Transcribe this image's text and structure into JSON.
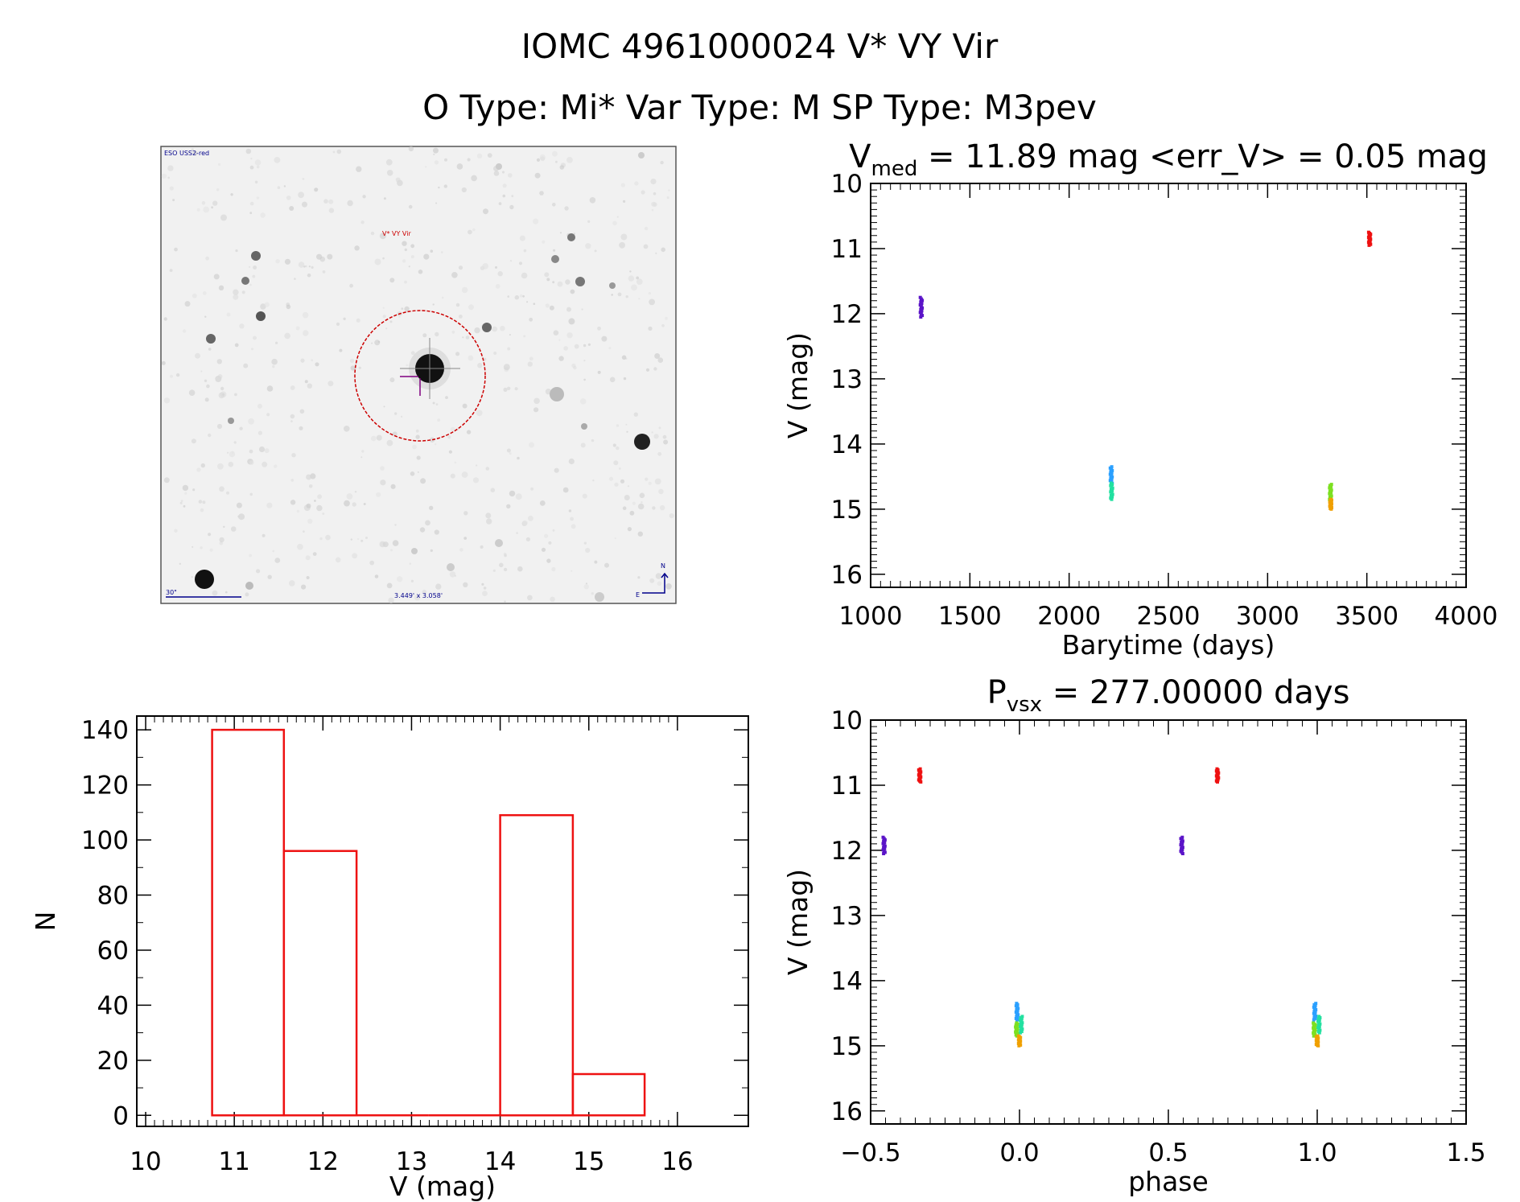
{
  "header": {
    "title_line1": "IOMC 4961000024    V* VY Vir",
    "title_line2": "O Type: Mi*  Var Type: M  SP Type: M3pev"
  },
  "finder_chart": {
    "survey_label": "ESO USS2-red",
    "object_label": "V* VY Vir",
    "scale_label": "30\"",
    "fov_label": "3.449' x 3.058'",
    "north_label": "N",
    "east_label": "E",
    "label_color": "#00008b",
    "object_color": "#cc0000",
    "marker_color": "#800080"
  },
  "chart_data": [
    {
      "id": "light_curve",
      "type": "scatter",
      "title_main": "V",
      "title_sub": "med",
      "title_rest": " = 11.89 mag <err_V> = 0.05 mag",
      "xlabel": "Barytime (days)",
      "ylabel": "V (mag)",
      "xlim": [
        1000,
        4000
      ],
      "ylim": [
        16.2,
        10
      ],
      "y_inverted": true,
      "xticks": [
        1000,
        1500,
        2000,
        2500,
        3000,
        3500,
        4000
      ],
      "yticks": [
        10,
        11,
        12,
        13,
        14,
        15,
        16
      ],
      "groups": [
        {
          "x": 1255,
          "y_min": 11.75,
          "y_max": 12.05,
          "color": "#5b14c8"
        },
        {
          "x": 2212,
          "y_min": 14.35,
          "y_max": 14.6,
          "color": "#2aa0ff"
        },
        {
          "x": 2214,
          "y_min": 14.6,
          "y_max": 14.85,
          "color": "#22e0a0"
        },
        {
          "x": 3317,
          "y_min": 14.62,
          "y_max": 14.85,
          "color": "#7ce020"
        },
        {
          "x": 3318,
          "y_min": 14.85,
          "y_max": 15.0,
          "color": "#f0a000"
        },
        {
          "x": 3514,
          "y_min": 10.75,
          "y_max": 10.95,
          "color": "#ee1111"
        }
      ]
    },
    {
      "id": "phase_curve",
      "type": "scatter",
      "title_main": "P",
      "title_sub": "vsx",
      "title_rest": " = 277.00000 days",
      "xlabel": "phase",
      "ylabel": "V (mag)",
      "xlim": [
        -0.5,
        1.5
      ],
      "ylim": [
        16.2,
        10
      ],
      "y_inverted": true,
      "xticks": [
        -0.5,
        0.0,
        0.5,
        1.0,
        1.5
      ],
      "xtick_labels": [
        "−0.5",
        "0.0",
        "0.5",
        "1.0",
        "1.5"
      ],
      "yticks": [
        10,
        11,
        12,
        13,
        14,
        15,
        16
      ],
      "groups": [
        {
          "x": -0.455,
          "y_min": 11.8,
          "y_max": 12.05,
          "color": "#5b14c8"
        },
        {
          "x": -0.335,
          "y_min": 10.75,
          "y_max": 10.95,
          "color": "#ee1111"
        },
        {
          "x": -0.008,
          "y_min": 14.35,
          "y_max": 14.6,
          "color": "#2aa0ff"
        },
        {
          "x": 0.006,
          "y_min": 14.55,
          "y_max": 14.8,
          "color": "#22e0a0"
        },
        {
          "x": -0.01,
          "y_min": 14.65,
          "y_max": 14.85,
          "color": "#7ce020"
        },
        {
          "x": 0.0,
          "y_min": 14.85,
          "y_max": 15.0,
          "color": "#f0a000"
        },
        {
          "x": 0.545,
          "y_min": 11.8,
          "y_max": 12.05,
          "color": "#5b14c8"
        },
        {
          "x": 0.665,
          "y_min": 10.75,
          "y_max": 10.95,
          "color": "#ee1111"
        },
        {
          "x": 0.992,
          "y_min": 14.35,
          "y_max": 14.6,
          "color": "#2aa0ff"
        },
        {
          "x": 1.006,
          "y_min": 14.55,
          "y_max": 14.8,
          "color": "#22e0a0"
        },
        {
          "x": 0.99,
          "y_min": 14.65,
          "y_max": 14.85,
          "color": "#7ce020"
        },
        {
          "x": 1.0,
          "y_min": 14.85,
          "y_max": 15.0,
          "color": "#f0a000"
        }
      ]
    },
    {
      "id": "histogram",
      "type": "bar",
      "xlabel": "V (mag)",
      "ylabel": "N",
      "xlim": [
        9.9,
        16.8
      ],
      "ylim": [
        -4,
        145
      ],
      "xticks": [
        10,
        11,
        12,
        13,
        14,
        15,
        16
      ],
      "yticks": [
        0,
        20,
        40,
        60,
        80,
        100,
        120,
        140
      ],
      "bin_edges": [
        10.75,
        11.56,
        12.38,
        13.19,
        14.0,
        14.82,
        15.63
      ],
      "values": [
        140,
        96,
        0,
        0,
        109,
        15
      ],
      "bar_color": "#ee1111"
    }
  ]
}
